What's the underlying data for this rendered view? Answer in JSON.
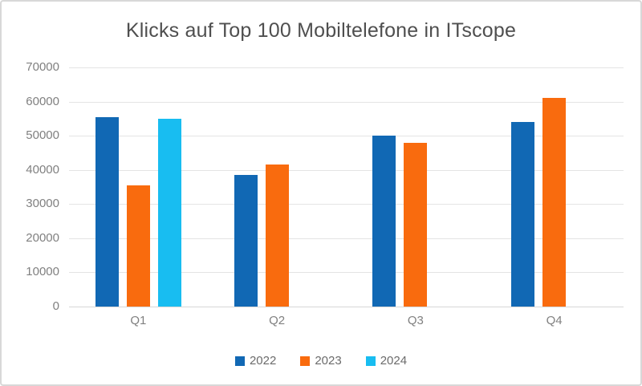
{
  "chart": {
    "title": "Klicks auf Top 100 Mobiltelefone in ITscope"
  },
  "chart_data": {
    "type": "bar",
    "title": "Klicks auf Top 100 Mobiltelefone in ITscope",
    "categories": [
      "Q1",
      "Q2",
      "Q3",
      "Q4"
    ],
    "series": [
      {
        "name": "2022",
        "color": "#1168b4",
        "values": [
          55500,
          38500,
          50000,
          54000
        ]
      },
      {
        "name": "2023",
        "color": "#f96b0e",
        "values": [
          35500,
          41500,
          48000,
          61000
        ]
      },
      {
        "name": "2024",
        "color": "#18bdf1",
        "values": [
          55000,
          null,
          null,
          null
        ]
      }
    ],
    "xlabel": "",
    "ylabel": "",
    "ylim": [
      0,
      70000
    ],
    "yticks": [
      0,
      10000,
      20000,
      30000,
      40000,
      50000,
      60000,
      70000
    ],
    "grid": true,
    "legend_position": "bottom"
  },
  "colors": {
    "grid": "#e4e4e4",
    "axis_text": "#808080",
    "title_text": "#4f4f4f",
    "legend_text": "#6b6b6b",
    "background": "#ffffff",
    "border": "#d8d8d8"
  }
}
